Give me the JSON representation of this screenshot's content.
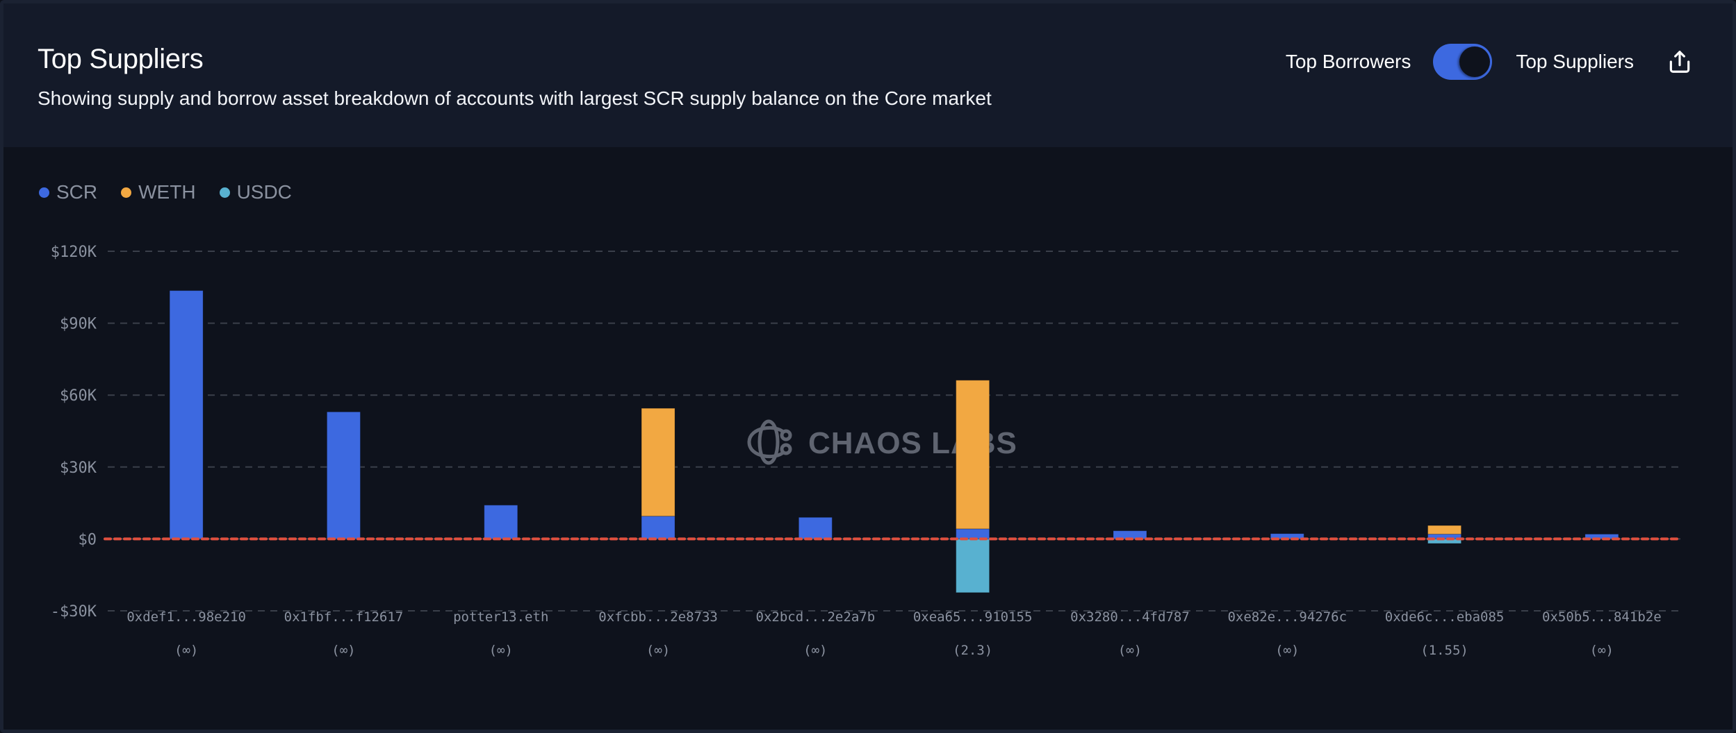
{
  "header": {
    "title": "Top Suppliers",
    "subtitle": "Showing supply and borrow asset breakdown of accounts with largest SCR supply balance on the Core market",
    "toggle_left_label": "Top Borrowers",
    "toggle_right_label": "Top Suppliers",
    "toggle_state": "Top Suppliers",
    "share_icon": "share-export-icon"
  },
  "watermark": {
    "text": "CHAOS LABS",
    "icon": "chaos-labs-logo-icon"
  },
  "colors": {
    "SCR": "#3d69e0",
    "WETH": "#f2a842",
    "USDC": "#58b1d0",
    "zero_line": "#e0503f"
  },
  "chart_data": {
    "type": "bar",
    "stacked": true,
    "title": "Top Suppliers",
    "xlabel": "",
    "ylabel": "",
    "ylim": [
      -30000,
      120000
    ],
    "yticks": [
      120000,
      90000,
      60000,
      30000,
      0,
      -30000
    ],
    "ytick_labels": [
      "$120K",
      "$90K",
      "$60K",
      "$30K",
      "$0",
      "-$30K"
    ],
    "grid": true,
    "legend_position": "top-left",
    "categories": [
      "0xdef1...98e210",
      "0x1fbf...f12617",
      "potter13.eth",
      "0xfcbb...2e8733",
      "0x2bcd...2e2a7b",
      "0xea65...910155",
      "0x3280...4fd787",
      "0xe82e...94276c",
      "0xde6c...eba085",
      "0x50b5...841b2e"
    ],
    "sublabels": [
      "(∞)",
      "(∞)",
      "(∞)",
      "(∞)",
      "(∞)",
      "(2.3)",
      "(∞)",
      "(∞)",
      "(1.55)",
      "(∞)"
    ],
    "series": [
      {
        "name": "SCR",
        "values": [
          103600,
          53000,
          14100,
          9500,
          9000,
          4200,
          3400,
          2200,
          2000,
          2000
        ]
      },
      {
        "name": "WETH",
        "values": [
          0,
          0,
          0,
          45000,
          0,
          62000,
          0,
          0,
          3600,
          0
        ]
      },
      {
        "name": "USDC",
        "values": [
          0,
          0,
          0,
          0,
          0,
          -22400,
          0,
          0,
          -1900,
          0
        ]
      }
    ]
  }
}
